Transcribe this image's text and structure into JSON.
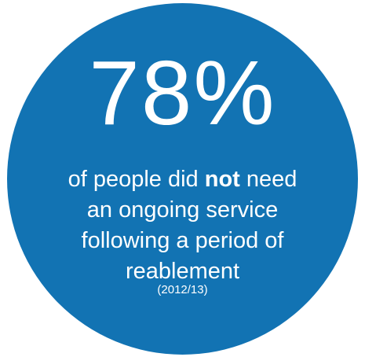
{
  "stat": {
    "value": "78%",
    "line1_before": "of people did ",
    "line1_emphasis": "not",
    "line1_after": " need",
    "line2": "an ongoing service",
    "line3": "following a period of",
    "line4": "reablement",
    "year": "(2012/13)"
  },
  "colors": {
    "circle": "#1273b3",
    "text": "#ffffff",
    "background": "#ffffff"
  }
}
